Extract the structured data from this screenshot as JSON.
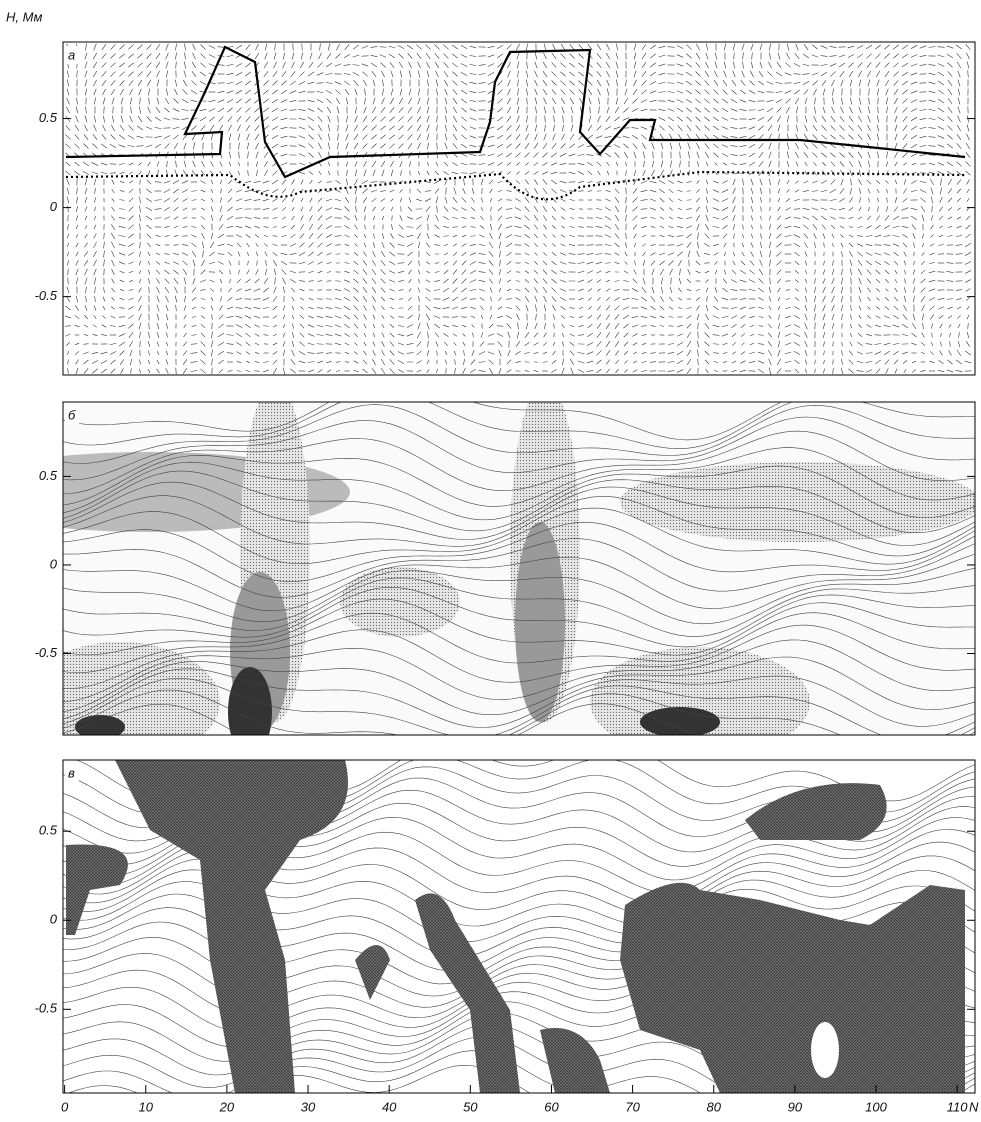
{
  "chart_data": [
    {
      "type": "quiver",
      "panel_label": "а",
      "y_label": "H, Мм",
      "xlim": [
        -0.2,
        112.2
      ],
      "ylim": [
        -0.94,
        0.93
      ],
      "yticks": [
        -0.5,
        0,
        0.5
      ]
    },
    {
      "type": "contour",
      "panel_label": "б",
      "xlim": [
        -0.2,
        112.2
      ],
      "ylim": [
        -0.96,
        0.92
      ],
      "yticks": [
        -0.5,
        0,
        0.5
      ]
    },
    {
      "type": "contour-hatched",
      "panel_label": "в",
      "x_label": "N",
      "xlim": [
        -0.2,
        112.2
      ],
      "ylim": [
        -0.97,
        0.9
      ],
      "yticks": [
        -0.5,
        0,
        0.5
      ],
      "xticks": [
        0,
        10,
        20,
        30,
        40,
        50,
        60,
        70,
        80,
        90,
        100,
        110
      ]
    }
  ]
}
